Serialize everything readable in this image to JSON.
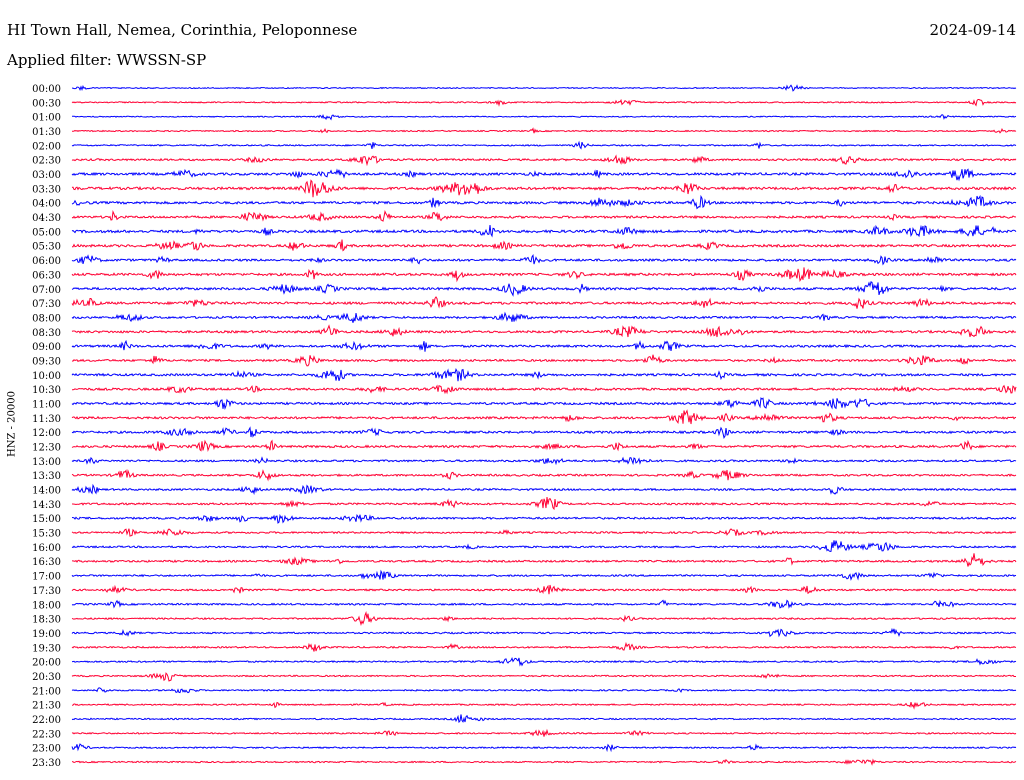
{
  "header": {
    "station": "HI Town Hall, Nemea, Corinthia, Peloponnese",
    "date": "2024-09-14",
    "filter": "Applied filter: WWSSN-SP"
  },
  "chart_data": {
    "type": "line",
    "title": "HI Town Hall, Nemea, Corinthia, Peloponnese",
    "ylabel": "HNZ - 20000",
    "trace_colors": [
      "#0000ff",
      "#ff0033"
    ],
    "rows": [
      "00:00",
      "00:30",
      "01:00",
      "01:30",
      "02:00",
      "02:30",
      "03:00",
      "03:30",
      "04:00",
      "04:30",
      "05:00",
      "05:30",
      "06:00",
      "06:30",
      "07:00",
      "07:30",
      "08:00",
      "08:30",
      "09:00",
      "09:30",
      "10:00",
      "10:30",
      "11:00",
      "11:30",
      "12:00",
      "12:30",
      "13:00",
      "13:30",
      "14:00",
      "14:30",
      "15:00",
      "15:30",
      "16:00",
      "16:30",
      "17:00",
      "17:30",
      "18:00",
      "18:30",
      "19:00",
      "19:30",
      "20:00",
      "20:30",
      "21:00",
      "21:30",
      "22:00",
      "22:30",
      "23:00",
      "23:30"
    ],
    "row_interval_minutes": 30,
    "activity": [
      0.1,
      0.15,
      0.1,
      0.15,
      0.2,
      0.35,
      0.5,
      0.55,
      0.5,
      0.45,
      0.55,
      0.5,
      0.45,
      0.5,
      0.5,
      0.5,
      0.4,
      0.45,
      0.45,
      0.4,
      0.45,
      0.45,
      0.45,
      0.45,
      0.45,
      0.45,
      0.35,
      0.35,
      0.35,
      0.35,
      0.35,
      0.3,
      0.3,
      0.35,
      0.3,
      0.3,
      0.3,
      0.25,
      0.25,
      0.25,
      0.25,
      0.2,
      0.2,
      0.2,
      0.2,
      0.2,
      0.2,
      0.2
    ]
  }
}
